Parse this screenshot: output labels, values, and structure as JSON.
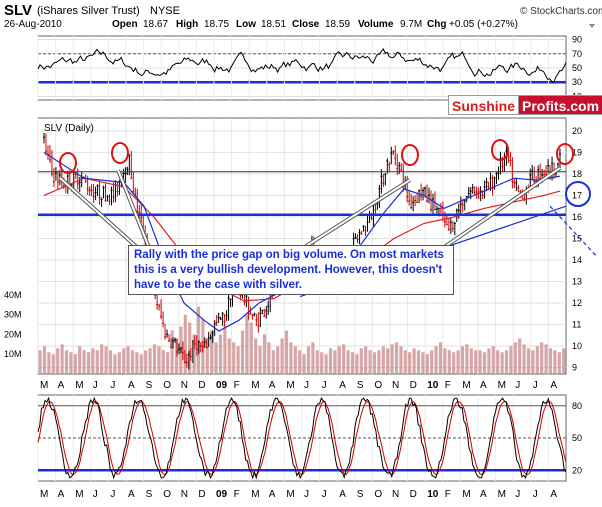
{
  "header": {
    "symbol": "SLV",
    "name": "(iShares Silver Trust)",
    "exchange": "NYSE",
    "date": "26-Aug-2010",
    "open_label": "Open",
    "open": "18.67",
    "high_label": "High",
    "high": "18.75",
    "low_label": "Low",
    "low": "18.51",
    "close_label": "Close",
    "close": "18.59",
    "volume_label": "Volume",
    "volume": "9.7M",
    "chg_label": "Chg",
    "chg": "+0.05 (+0.27%)",
    "copyright": "© StockCharts.com"
  },
  "logo": {
    "part1": "Sunshine",
    "part2": "Profits.com"
  },
  "callout": {
    "line1": "Rally with the price gap on big volume. On most markets",
    "line2": "this is a very bullish development. However, this doesn't",
    "line3": "have to be the case with silver."
  },
  "colors": {
    "price_up": "#000000",
    "price_down": "#d00000",
    "ma_short": "#1a2fd6",
    "ma_long": "#e02020",
    "support": "#1a2fd6",
    "volume": "#c98a8a"
  },
  "chart_data": [
    {
      "type": "line",
      "title": "",
      "y_ticks": [
        10,
        30,
        50,
        70,
        90
      ],
      "ylim": [
        5,
        95
      ],
      "reference_lines": [
        30,
        70
      ]
    },
    {
      "type": "candlestick",
      "title": "SLV (Daily)",
      "x_months": [
        "M",
        "A",
        "M",
        "J",
        "J",
        "A",
        "S",
        "O",
        "N",
        "D",
        "09",
        "F",
        "M",
        "A",
        "M",
        "J",
        "J",
        "A",
        "S",
        "O",
        "N",
        "D",
        "10",
        "F",
        "M",
        "A",
        "M",
        "J",
        "J",
        "A"
      ],
      "bold_x_labels": [
        "09",
        "10"
      ],
      "y_ticks": [
        9,
        10,
        11,
        12,
        13,
        14,
        15,
        16,
        17,
        18,
        19,
        20
      ],
      "ylim": [
        8.7,
        20.6
      ],
      "volume_ticks": [
        "10M",
        "20M",
        "30M",
        "40M"
      ],
      "resistance": 18.1,
      "support": 16.1,
      "close_path": [
        [
          0,
          19.5
        ],
        [
          8,
          18.0
        ],
        [
          20,
          17.6
        ],
        [
          35,
          17.9
        ],
        [
          50,
          17.2
        ],
        [
          70,
          17.0
        ],
        [
          80,
          18.2
        ],
        [
          85,
          18.7
        ],
        [
          92,
          16.6
        ],
        [
          102,
          15.0
        ],
        [
          112,
          12.2
        ],
        [
          122,
          10.5
        ],
        [
          132,
          10.0
        ],
        [
          142,
          9.3
        ],
        [
          152,
          10.2
        ],
        [
          160,
          9.8
        ],
        [
          170,
          10.9
        ],
        [
          182,
          11.4
        ],
        [
          190,
          13.3
        ],
        [
          200,
          12.2
        ],
        [
          212,
          11.1
        ],
        [
          222,
          11.8
        ],
        [
          232,
          12.8
        ],
        [
          244,
          13.6
        ],
        [
          256,
          13.3
        ],
        [
          268,
          14.7
        ],
        [
          280,
          13.8
        ],
        [
          292,
          13.6
        ],
        [
          302,
          13.9
        ],
        [
          314,
          15.1
        ],
        [
          324,
          15.7
        ],
        [
          334,
          17.0
        ],
        [
          343,
          18.5
        ],
        [
          350,
          19.0
        ],
        [
          356,
          18.2
        ],
        [
          366,
          16.6
        ],
        [
          378,
          17.2
        ],
        [
          388,
          16.6
        ],
        [
          396,
          16.2
        ],
        [
          404,
          15.3
        ],
        [
          412,
          16.1
        ],
        [
          420,
          16.9
        ],
        [
          430,
          17.3
        ],
        [
          438,
          17.1
        ],
        [
          448,
          17.6
        ],
        [
          456,
          18.4
        ],
        [
          464,
          18.8
        ],
        [
          470,
          17.5
        ],
        [
          478,
          17.0
        ],
        [
          488,
          17.8
        ],
        [
          498,
          18.1
        ],
        [
          508,
          18.2
        ],
        [
          516,
          18.59
        ]
      ],
      "ma_short_path": [
        [
          0,
          19.0
        ],
        [
          40,
          17.8
        ],
        [
          80,
          17.6
        ],
        [
          100,
          16.5
        ],
        [
          120,
          14.0
        ],
        [
          140,
          12.0
        ],
        [
          160,
          11.2
        ],
        [
          175,
          10.7
        ],
        [
          195,
          11.2
        ],
        [
          215,
          12.0
        ],
        [
          240,
          12.6
        ],
        [
          265,
          13.4
        ],
        [
          290,
          13.9
        ],
        [
          315,
          14.6
        ],
        [
          340,
          16.2
        ],
        [
          360,
          17.3
        ],
        [
          380,
          17.0
        ],
        [
          400,
          16.4
        ],
        [
          420,
          16.8
        ],
        [
          445,
          17.3
        ],
        [
          470,
          17.8
        ],
        [
          495,
          17.7
        ],
        [
          516,
          17.9
        ]
      ],
      "ma_long_path": [
        [
          0,
          17.0
        ],
        [
          40,
          17.8
        ],
        [
          80,
          17.4
        ],
        [
          110,
          16.0
        ],
        [
          140,
          14.2
        ],
        [
          170,
          12.8
        ],
        [
          200,
          12.1
        ],
        [
          230,
          12.2
        ],
        [
          260,
          13.0
        ],
        [
          290,
          13.4
        ],
        [
          320,
          14.0
        ],
        [
          350,
          15.0
        ],
        [
          380,
          15.7
        ],
        [
          410,
          16.0
        ],
        [
          440,
          16.4
        ],
        [
          470,
          16.7
        ],
        [
          500,
          17.0
        ],
        [
          516,
          17.2
        ]
      ],
      "volume_values": [
        12,
        14,
        11,
        10,
        13,
        15,
        12,
        11,
        10,
        14,
        12,
        11,
        13,
        12,
        15,
        14,
        12,
        10,
        11,
        13,
        14,
        12,
        11,
        10,
        12,
        13,
        15,
        14,
        12,
        11,
        22,
        18,
        24,
        30,
        26,
        20,
        34,
        28,
        18,
        22,
        16,
        20,
        24,
        18,
        16,
        14,
        22,
        30,
        26,
        18,
        14,
        20,
        16,
        12,
        14,
        18,
        22,
        16,
        14,
        12,
        10,
        14,
        16,
        12,
        11,
        10,
        13,
        12,
        14,
        15,
        12,
        11,
        10,
        13,
        14,
        12,
        11,
        12,
        14,
        13,
        15,
        16,
        14,
        12,
        11,
        13,
        12,
        11,
        10,
        12,
        14,
        16,
        13,
        12,
        11,
        12,
        14,
        15,
        13,
        12,
        12,
        11,
        13,
        14,
        12,
        11,
        12,
        14,
        16,
        18,
        15,
        13,
        12,
        14,
        16,
        15,
        13,
        12,
        11,
        13
      ]
    },
    {
      "type": "line",
      "title": "",
      "x_months": [
        "M",
        "A",
        "M",
        "J",
        "J",
        "A",
        "S",
        "O",
        "N",
        "D",
        "09",
        "F",
        "M",
        "A",
        "M",
        "J",
        "J",
        "A",
        "S",
        "O",
        "N",
        "D",
        "10",
        "F",
        "M",
        "A",
        "M",
        "J",
        "J",
        "A"
      ],
      "y_ticks": [
        20,
        50,
        80
      ],
      "ylim": [
        10,
        90
      ],
      "reference_lines": [
        20,
        50,
        80
      ]
    }
  ]
}
